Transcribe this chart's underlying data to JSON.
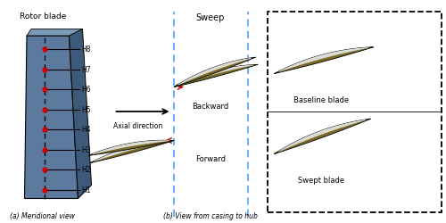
{
  "rotor_blade_label": "Rotor blade",
  "blade_labels": [
    "H8",
    "H7",
    "H6",
    "H5",
    "H4",
    "H3",
    "H2",
    "H1"
  ],
  "axial_direction_label": "Axial direction",
  "sweep_label": "Sweep",
  "backward_label": "Backward",
  "forward_label": "Forward",
  "baseline_blade_label": "Baseline blade",
  "swept_blade_label": "Swept blade",
  "meridional_label": "(a) Meridional view",
  "casing_hub_label": "(b) View from casing to hub",
  "blade_fill_color": "#5c7a9e",
  "blade_side_color": "#3d5a7a",
  "airfoil_gold": "#7a6a28",
  "airfoil_white": "#e8e8e8",
  "dashed_line_color": "#4da6ff",
  "background": "#ffffff",
  "red_dot_color": "#cc0000",
  "arrow_color": "#cc0000"
}
